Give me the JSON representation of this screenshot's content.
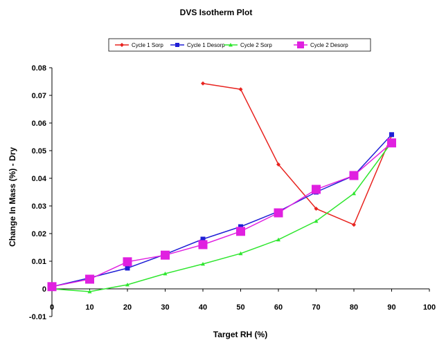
{
  "chart_data": {
    "type": "line",
    "title": "DVS Isotherm Plot",
    "xlabel": "Target RH (%)",
    "ylabel": "Change In Mass (%) - Dry",
    "xlim": [
      0,
      100
    ],
    "ylim": [
      -0.01,
      0.08
    ],
    "x_ticks": [
      "0",
      "10",
      "20",
      "30",
      "40",
      "50",
      "60",
      "70",
      "80",
      "90",
      "100"
    ],
    "y_ticks": [
      "-0.01",
      "0",
      "0.01",
      "0.02",
      "0.03",
      "0.04",
      "0.05",
      "0.06",
      "0.07",
      "0.08"
    ],
    "grid": false,
    "legend_position": "top",
    "series": [
      {
        "name": "Cycle 1 Sorp",
        "color": "#e8231f",
        "marker": "diamond",
        "x": [
          40,
          50,
          60,
          70,
          80,
          90
        ],
        "y": [
          0.0743,
          0.0722,
          0.045,
          0.029,
          0.0232,
          0.0555
        ]
      },
      {
        "name": "Cycle 1 Desorp",
        "color": "#1f1fd6",
        "marker": "square",
        "x": [
          0,
          10,
          20,
          30,
          40,
          50,
          60,
          70,
          80,
          90
        ],
        "y": [
          0.0008,
          0.004,
          0.0075,
          0.0125,
          0.018,
          0.0225,
          0.028,
          0.035,
          0.041,
          0.0558
        ]
      },
      {
        "name": "Cycle 2 Sorp",
        "color": "#2ee62e",
        "marker": "triangle",
        "x": [
          0,
          10,
          20,
          30,
          40,
          50,
          60,
          70,
          80,
          90
        ],
        "y": [
          0.0,
          -0.001,
          0.0015,
          0.0055,
          0.009,
          0.0128,
          0.0178,
          0.0245,
          0.0345,
          0.053
        ]
      },
      {
        "name": "Cycle 2 Desorp",
        "color": "#e020e0",
        "marker": "square",
        "x": [
          0,
          10,
          20,
          30,
          40,
          50,
          60,
          70,
          80,
          90
        ],
        "y": [
          0.0008,
          0.0035,
          0.0098,
          0.0122,
          0.016,
          0.0208,
          0.0275,
          0.036,
          0.041,
          0.0528
        ]
      }
    ]
  }
}
